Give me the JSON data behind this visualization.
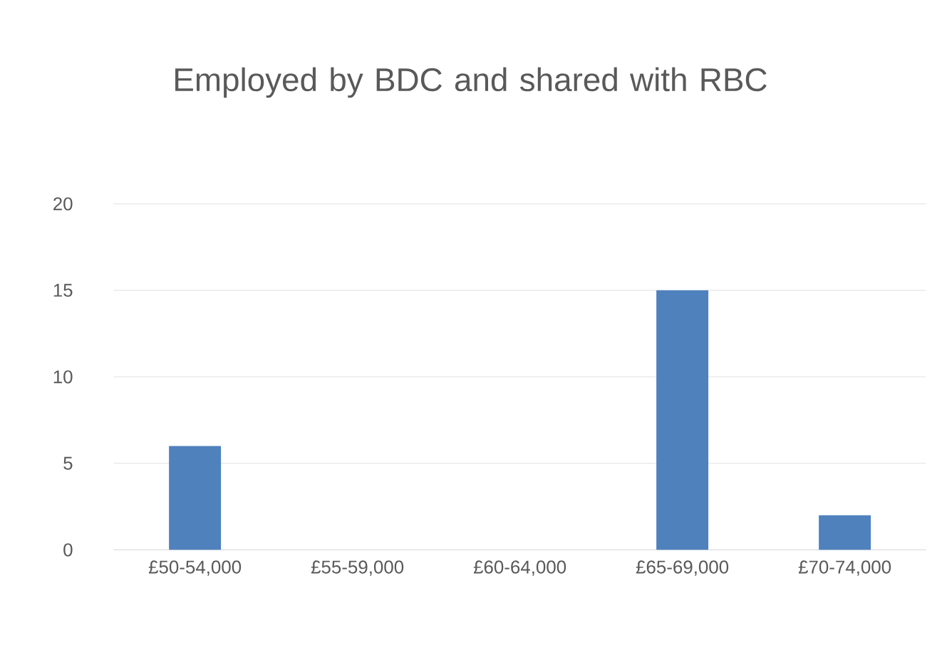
{
  "chart_data": {
    "type": "bar",
    "title": "Employed by BDC and shared with RBC",
    "categories": [
      "£50-54,000",
      "£55-59,000",
      "£60-64,000",
      "£65-69,000",
      "£70-74,000"
    ],
    "values": [
      6,
      0,
      0,
      15,
      2
    ],
    "color": "#4f81bd",
    "ylim": [
      0,
      20
    ],
    "yticks": [
      0,
      5,
      10,
      15,
      20
    ],
    "grid": "y"
  }
}
